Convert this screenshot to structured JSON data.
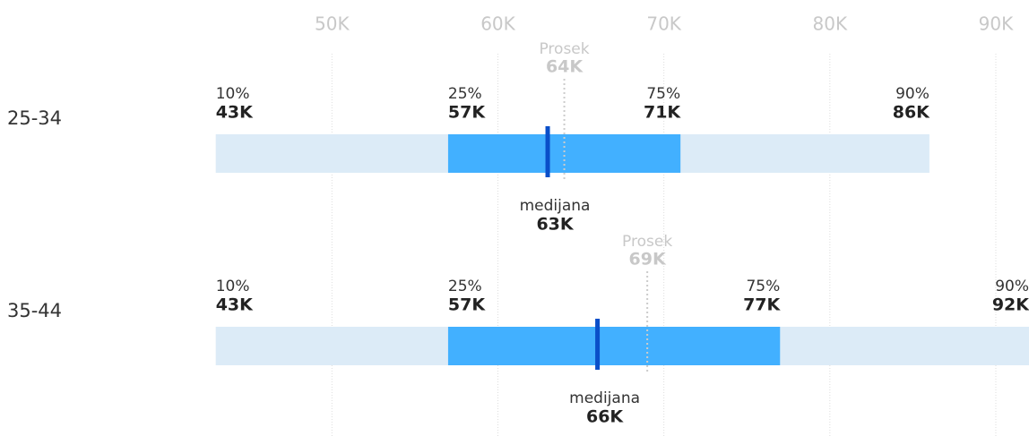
{
  "chart_data": {
    "type": "percentile-range",
    "categories": [
      "25-34",
      "35-44"
    ],
    "percentile_labels": [
      "10%",
      "25%",
      "75%",
      "90%"
    ],
    "median_label": "medijana",
    "mean_label": "Prosek",
    "rows": [
      {
        "values": [
          43000,
          57000,
          71000,
          86000
        ],
        "value_labels": [
          "43K",
          "57K",
          "71K",
          "86K"
        ],
        "median": 63000,
        "median_value_label": "63K",
        "mean": 64000,
        "mean_value_label": "64K"
      },
      {
        "values": [
          43000,
          57000,
          77000,
          92000
        ],
        "value_labels": [
          "43K",
          "57K",
          "77K",
          "92K"
        ],
        "median": 66000,
        "median_value_label": "66K",
        "mean": 69000,
        "mean_value_label": "69K"
      }
    ],
    "xlim": [
      30000,
      92000
    ],
    "xticks": [
      {
        "value": 50000,
        "label": "50K"
      },
      {
        "value": 60000,
        "label": "60K"
      },
      {
        "value": 70000,
        "label": "70K"
      },
      {
        "value": 80000,
        "label": "80K"
      },
      {
        "value": 90000,
        "label": "90K"
      }
    ],
    "outer_color": "#dcebf7",
    "inner_color": "#42b0ff",
    "median_color": "#0a4fc9",
    "grid": true
  }
}
